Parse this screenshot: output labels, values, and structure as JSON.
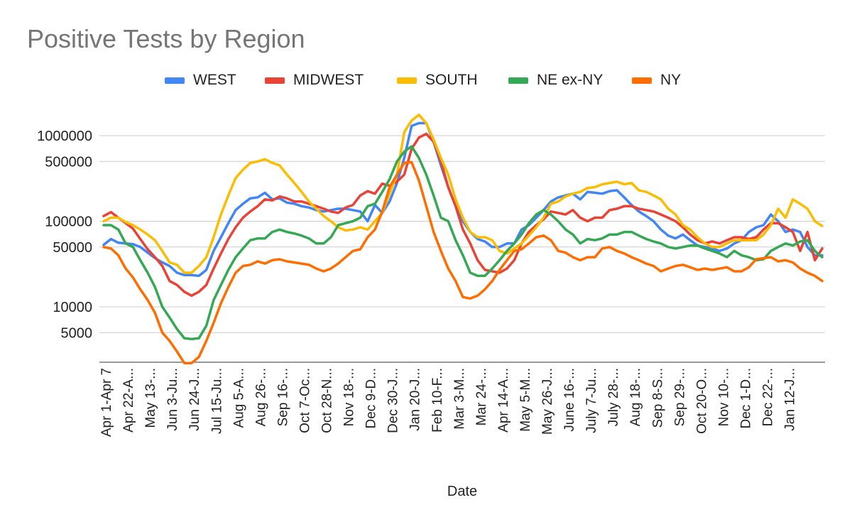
{
  "chart_data": {
    "type": "line",
    "title": "Positive Tests by Region",
    "xlabel": "Date",
    "ylabel": "",
    "y_scale": "log",
    "yticks": [
      5000,
      10000,
      50000,
      100000,
      500000,
      1000000
    ],
    "ylim": [
      2000,
      2000000
    ],
    "grid": true,
    "legend_position": "top",
    "x_tick_labels": [
      "Apr 1-Apr 7",
      "Apr 22-A...",
      "May 13-...",
      "Jun 3-Ju...",
      "Jun 24-J...",
      "Jul 15-Ju...",
      "Aug 5-A...",
      "Aug 26-...",
      "Sep 16-...",
      "Oct 7-Oc...",
      "Oct 28-N...",
      "Nov 18-...",
      "Dec 9-D...",
      "Dec 30-J...",
      "Jan 20-J...",
      "Feb 10-F...",
      "Mar 3-M...",
      "Mar 24-...",
      "Apr 14-A...",
      "May 5-M...",
      "May 26-J...",
      "June 16-...",
      "July 7-Ju...",
      "July 28-...",
      "Aug 18-...",
      "Sep 8-S...",
      "Sep 29-...",
      "Oct 20-O...",
      "Nov 10-...",
      "Dec 1-D...",
      "Dec 22-...",
      "Jan 12-J..."
    ],
    "series": [
      {
        "name": "WEST",
        "color": "#4285F4",
        "values": [
          53000,
          62000,
          56000,
          55000,
          54000,
          50000,
          43000,
          37000,
          33000,
          30000,
          25000,
          23500,
          23500,
          23000,
          27000,
          45000,
          65000,
          95000,
          135000,
          160000,
          185000,
          190000,
          215000,
          180000,
          185000,
          165000,
          160000,
          150000,
          145000,
          135000,
          130000,
          135000,
          140000,
          140000,
          135000,
          130000,
          100000,
          155000,
          125000,
          170000,
          280000,
          550000,
          1300000,
          1400000,
          1400000,
          850000,
          450000,
          250000,
          150000,
          100000,
          75000,
          62000,
          58000,
          50000,
          50000,
          55000,
          55000,
          80000,
          90000,
          110000,
          135000,
          170000,
          190000,
          200000,
          210000,
          180000,
          220000,
          215000,
          210000,
          225000,
          230000,
          190000,
          155000,
          130000,
          115000,
          100000,
          80000,
          68000,
          63000,
          70000,
          60000,
          52000,
          50000,
          48000,
          45000,
          48000,
          55000,
          60000,
          75000,
          85000,
          90000,
          120000,
          100000,
          75000,
          80000,
          75000,
          50000,
          40000,
          40000
        ]
      },
      {
        "name": "MIDWEST",
        "color": "#EA4335",
        "values": [
          115000,
          128000,
          110000,
          95000,
          82000,
          62000,
          47000,
          38000,
          30000,
          20000,
          18000,
          15000,
          13500,
          15000,
          18000,
          28000,
          42000,
          62000,
          85000,
          110000,
          130000,
          150000,
          180000,
          175000,
          195000,
          185000,
          170000,
          170000,
          160000,
          150000,
          140000,
          130000,
          125000,
          145000,
          155000,
          200000,
          225000,
          210000,
          275000,
          260000,
          290000,
          350000,
          700000,
          950000,
          1050000,
          850000,
          500000,
          250000,
          150000,
          80000,
          55000,
          35000,
          27000,
          26000,
          25000,
          28000,
          35000,
          55000,
          75000,
          90000,
          105000,
          130000,
          125000,
          120000,
          135000,
          110000,
          100000,
          110000,
          110000,
          135000,
          140000,
          150000,
          150000,
          140000,
          135000,
          130000,
          120000,
          110000,
          100000,
          85000,
          70000,
          60000,
          55000,
          58000,
          55000,
          60000,
          65000,
          65000,
          62000,
          65000,
          80000,
          95000,
          95000,
          85000,
          75000,
          45000,
          75000,
          35000,
          48000
        ]
      },
      {
        "name": "SOUTH",
        "color": "#FBBC04",
        "values": [
          100000,
          110000,
          110000,
          98000,
          90000,
          80000,
          70000,
          60000,
          45000,
          33000,
          31000,
          25000,
          25000,
          30000,
          38000,
          65000,
          120000,
          200000,
          320000,
          400000,
          480000,
          500000,
          530000,
          480000,
          450000,
          350000,
          280000,
          220000,
          170000,
          140000,
          115000,
          100000,
          85000,
          78000,
          80000,
          85000,
          80000,
          100000,
          125000,
          210000,
          350000,
          1100000,
          1500000,
          1750000,
          1400000,
          900000,
          550000,
          350000,
          180000,
          110000,
          75000,
          65000,
          65000,
          60000,
          45000,
          42000,
          48000,
          55000,
          68000,
          85000,
          110000,
          160000,
          170000,
          195000,
          210000,
          220000,
          245000,
          250000,
          270000,
          280000,
          290000,
          270000,
          280000,
          230000,
          220000,
          200000,
          180000,
          140000,
          120000,
          90000,
          80000,
          65000,
          55000,
          50000,
          50000,
          55000,
          60000,
          60000,
          60000,
          60000,
          70000,
          90000,
          140000,
          110000,
          180000,
          160000,
          140000,
          100000,
          88000
        ]
      },
      {
        "name": "NE ex-NY",
        "color": "#34A853",
        "values": [
          90000,
          90000,
          80000,
          55000,
          50000,
          35000,
          25000,
          17000,
          10000,
          7500,
          5500,
          4300,
          4200,
          4300,
          6000,
          12000,
          18000,
          27000,
          38000,
          48000,
          60000,
          63000,
          63000,
          75000,
          80000,
          75000,
          72000,
          68000,
          63000,
          55000,
          55000,
          65000,
          90000,
          95000,
          100000,
          110000,
          150000,
          160000,
          220000,
          310000,
          500000,
          650000,
          750000,
          550000,
          350000,
          200000,
          110000,
          100000,
          60000,
          40000,
          25000,
          23000,
          23000,
          28000,
          35000,
          45000,
          55000,
          70000,
          95000,
          120000,
          135000,
          120000,
          100000,
          80000,
          70000,
          55000,
          62000,
          60000,
          63000,
          70000,
          70000,
          75000,
          75000,
          68000,
          62000,
          58000,
          55000,
          50000,
          48000,
          50000,
          52000,
          52000,
          48000,
          45000,
          42000,
          38000,
          45000,
          40000,
          38000,
          35000,
          36000,
          45000,
          50000,
          55000,
          52000,
          58000,
          60000,
          45000,
          38000
        ]
      },
      {
        "name": "NY",
        "color": "#FF6D01",
        "values": [
          50000,
          48000,
          40000,
          28000,
          22000,
          16000,
          12000,
          8500,
          5000,
          4000,
          3000,
          2200,
          2200,
          2600,
          4000,
          6500,
          11000,
          17000,
          25000,
          30000,
          31000,
          34000,
          32000,
          35000,
          36000,
          34000,
          33000,
          32000,
          31000,
          28000,
          26000,
          28000,
          32000,
          38000,
          45000,
          47000,
          65000,
          80000,
          130000,
          250000,
          350000,
          480000,
          490000,
          300000,
          150000,
          75000,
          45000,
          28000,
          20000,
          13000,
          12500,
          13500,
          16000,
          20000,
          27000,
          35000,
          45000,
          47000,
          55000,
          65000,
          68000,
          60000,
          45000,
          43000,
          38000,
          35000,
          38000,
          38000,
          48000,
          50000,
          45000,
          42000,
          38000,
          35000,
          32000,
          30000,
          26000,
          28000,
          30000,
          31000,
          29000,
          27000,
          28000,
          27000,
          28000,
          29000,
          26000,
          26000,
          29000,
          36000,
          37000,
          38000,
          34000,
          35000,
          33000,
          28000,
          25000,
          23000,
          20000
        ]
      }
    ]
  }
}
